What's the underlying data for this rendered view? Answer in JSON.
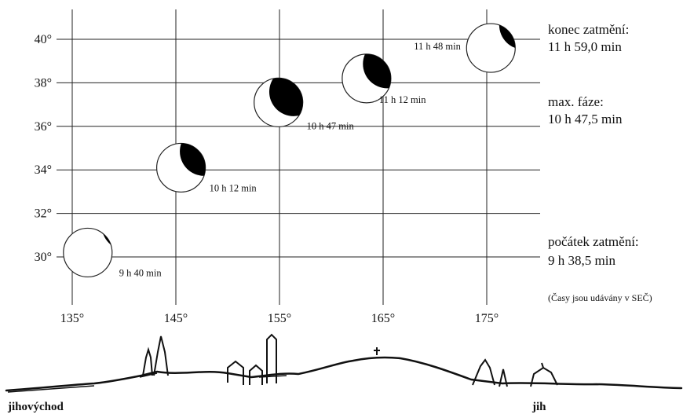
{
  "chart_data": {
    "type": "scatter",
    "title": "",
    "xlabel": "",
    "ylabel": "",
    "xlim": [
      132,
      180
    ],
    "ylim": [
      29,
      41
    ],
    "x_ticks": [
      135,
      145,
      155,
      165,
      175
    ],
    "y_ticks": [
      30,
      32,
      34,
      36,
      38,
      40
    ],
    "x_tick_labels": [
      "135°",
      "145°",
      "155°",
      "165°",
      "175°"
    ],
    "y_tick_labels": [
      "30°",
      "32°",
      "34°",
      "36°",
      "38°",
      "40°"
    ],
    "grid": true,
    "points": [
      {
        "time": "9 h 40 min",
        "azimuth": 136.5,
        "altitude": 30.2,
        "eclipsed": 0.04
      },
      {
        "time": "10 h 12 min",
        "azimuth": 145.5,
        "altitude": 34.1,
        "eclipsed": 0.42
      },
      {
        "time": "10 h 47 min",
        "azimuth": 154.9,
        "altitude": 37.1,
        "eclipsed": 0.62
      },
      {
        "time": "11 h 12 min",
        "azimuth": 163.4,
        "altitude": 38.2,
        "eclipsed": 0.48
      },
      {
        "time": "11 h 48 min",
        "azimuth": 175.4,
        "altitude": 39.6,
        "eclipsed": 0.18
      }
    ]
  },
  "info": {
    "end_label": "konec zatmění:",
    "end_time": "11 h 59,0 min",
    "max_label": "max. fáze:",
    "max_time": "10 h 47,5 min",
    "start_label": "počátek zatmění:",
    "start_time": "9 h 38,5 min",
    "note": "(Časy jsou udávány v SEČ)"
  },
  "horizon": {
    "left_label": "jihovýchod",
    "right_label": "jih"
  }
}
